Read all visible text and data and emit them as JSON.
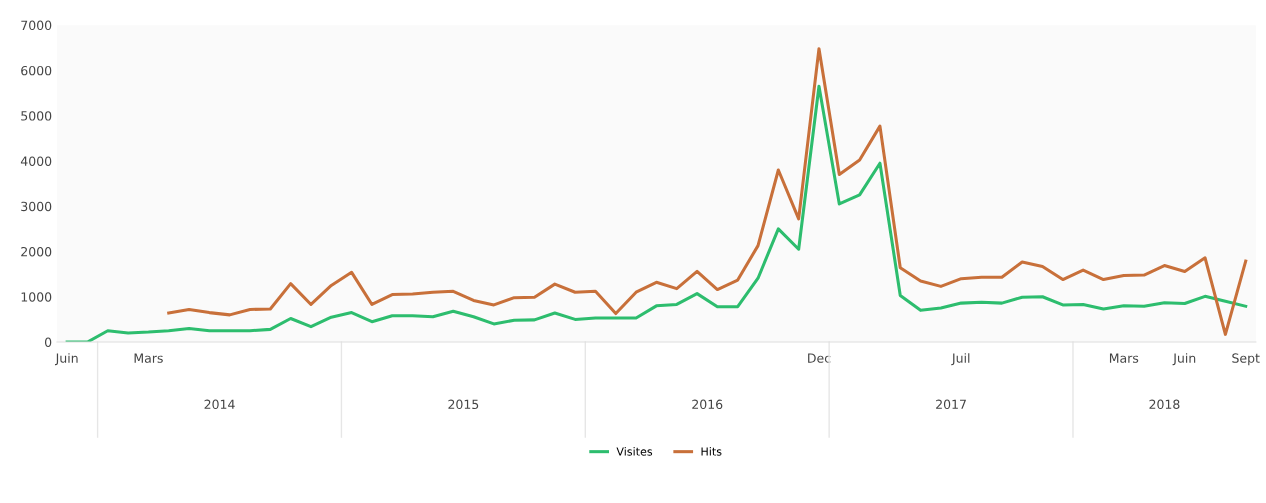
{
  "chart_data": {
    "type": "line",
    "categories": [
      "Juin",
      null,
      null,
      null,
      "Mars",
      null,
      null,
      null,
      null,
      null,
      null,
      null,
      null,
      null,
      null,
      null,
      null,
      null,
      null,
      null,
      null,
      null,
      null,
      null,
      null,
      null,
      null,
      null,
      null,
      null,
      null,
      null,
      null,
      null,
      null,
      null,
      null,
      "Dec",
      null,
      null,
      null,
      null,
      null,
      null,
      "Juil",
      null,
      null,
      null,
      null,
      null,
      null,
      null,
      "Mars",
      null,
      null,
      "Juin",
      null,
      null,
      "Sept"
    ],
    "series": [
      {
        "name": "Visites",
        "color": "#2dbd6e",
        "values": [
          0,
          0,
          250,
          200,
          220,
          250,
          300,
          250,
          250,
          250,
          280,
          520,
          340,
          550,
          650,
          450,
          580,
          580,
          560,
          680,
          560,
          400,
          480,
          490,
          640,
          500,
          530,
          530,
          530,
          800,
          830,
          1070,
          780,
          780,
          1410,
          2500,
          2050,
          5650,
          3050,
          3250,
          3950,
          1030,
          700,
          750,
          860,
          880,
          860,
          990,
          1000,
          820,
          830,
          730,
          800,
          790,
          870,
          850,
          1010,
          900,
          790
        ]
      },
      {
        "name": "Hits",
        "color": "#c8703a",
        "values": [
          null,
          null,
          null,
          null,
          null,
          640,
          720,
          650,
          600,
          720,
          730,
          1290,
          830,
          1250,
          1540,
          830,
          1050,
          1060,
          1100,
          1120,
          920,
          820,
          980,
          990,
          1280,
          1100,
          1120,
          630,
          1100,
          1320,
          1180,
          1560,
          1160,
          1370,
          2130,
          3800,
          2720,
          6480,
          3700,
          4020,
          4770,
          1640,
          1350,
          1230,
          1400,
          1430,
          1430,
          1770,
          1670,
          1380,
          1590,
          1380,
          1470,
          1480,
          1690,
          1560,
          1860,
          170,
          1790
        ]
      }
    ],
    "ylim": [
      0,
      7000
    ],
    "yticks": [
      0,
      1000,
      2000,
      3000,
      4000,
      5000,
      6000,
      7000
    ],
    "annotations": [
      "2014",
      "2015",
      "2016",
      "2017",
      "2018"
    ],
    "legend": "bottom",
    "grid": false,
    "marker": "none",
    "line_style": "solid"
  }
}
